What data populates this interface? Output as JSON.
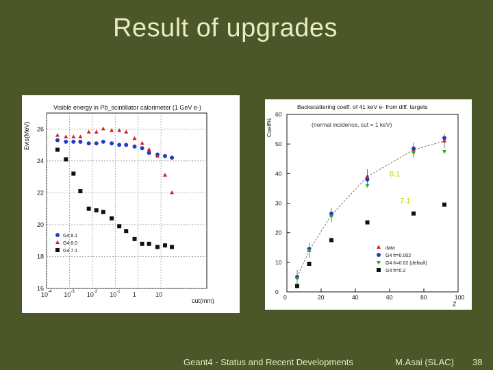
{
  "slide": {
    "title": "Result of upgrades",
    "footer_center": "Geant4 - Status and Recent Developments",
    "footer_author": "M.Asai (SLAC)",
    "page_number": "38"
  },
  "colors": {
    "background": "#4b5629",
    "title_text": "#e8ecc0",
    "blue": "#1f3fbf",
    "red": "#d42020",
    "black": "#111111",
    "green": "#22b022",
    "overlay_text": "#c8d400"
  },
  "chart_data": [
    {
      "type": "scatter",
      "title": "Visible energy in Pb_scintillator calorimeter (1 GeV e-)",
      "ylabel": "Evis(MeV)",
      "xlabel": "cut(mm)",
      "x_scale": "log",
      "xlim": [
        0.0001,
        1000
      ],
      "ylim": [
        16,
        27
      ],
      "grid": "dashed",
      "legend_position": "bottom-left",
      "x_tick_labels": [
        "10",
        "10",
        "10",
        "10",
        "1",
        "10"
      ],
      "x_tick_exponents": [
        "-4",
        "-3",
        "-2",
        "-1",
        "",
        ""
      ],
      "y_tick_labels": [
        "16",
        "18",
        "20",
        "22",
        "24",
        "26"
      ],
      "series": [
        {
          "name": "G4 8.1",
          "marker": "circle",
          "color": "blue",
          "x": [
            0.0003,
            0.0007,
            0.0015,
            0.003,
            0.007,
            0.015,
            0.03,
            0.07,
            0.15,
            0.3,
            0.7,
            1.5,
            3,
            7,
            15,
            30
          ],
          "y": [
            25.3,
            25.2,
            25.2,
            25.2,
            25.1,
            25.1,
            25.2,
            25.1,
            25.0,
            25.0,
            24.9,
            24.8,
            24.5,
            24.4,
            24.3,
            24.2
          ]
        },
        {
          "name": "G4 8.0",
          "marker": "triangle",
          "color": "red",
          "x": [
            0.0003,
            0.0007,
            0.0015,
            0.003,
            0.007,
            0.015,
            0.03,
            0.07,
            0.15,
            0.3,
            0.7,
            1.5,
            3,
            7,
            15,
            30
          ],
          "y": [
            25.6,
            25.5,
            25.5,
            25.5,
            25.8,
            25.8,
            26.0,
            25.9,
            25.9,
            25.8,
            25.4,
            25.1,
            24.7,
            24.3,
            23.1,
            22.0
          ]
        },
        {
          "name": "G4 7.1",
          "marker": "square",
          "color": "black",
          "x": [
            0.0003,
            0.0007,
            0.0015,
            0.003,
            0.007,
            0.015,
            0.03,
            0.07,
            0.15,
            0.3,
            0.7,
            1.5,
            3,
            7,
            15,
            30
          ],
          "y": [
            24.7,
            24.1,
            23.2,
            22.1,
            21.0,
            20.9,
            20.8,
            20.4,
            19.9,
            19.6,
            19.1,
            18.8,
            18.8,
            18.6,
            18.7,
            18.6
          ]
        }
      ],
      "overlay_labels": []
    },
    {
      "type": "scatter",
      "title": "Backscattering coeff. of 41 keV e- from diff. targets",
      "subtitle": "(normal incidence, cut = 1 keV)",
      "ylabel": "Coeff%",
      "xlabel": "Z",
      "xlim": [
        0,
        100
      ],
      "ylim": [
        0,
        60
      ],
      "grid": "none",
      "legend_position": "bottom-right",
      "x_tick_labels": [
        "0",
        "20",
        "40",
        "60",
        "80",
        "100"
      ],
      "y_tick_labels": [
        "0",
        "10",
        "20",
        "30",
        "40",
        "50",
        "60"
      ],
      "series": [
        {
          "name": "data",
          "marker": "triangle",
          "color": "red",
          "x": [
            6,
            13,
            26,
            47,
            74,
            92
          ],
          "y": [
            5,
            14,
            26,
            39,
            48,
            51
          ]
        },
        {
          "name": "G4 fr=0.002",
          "marker": "circle",
          "color": "blue",
          "x": [
            6,
            13,
            26,
            47,
            74,
            92
          ],
          "y": [
            5,
            14.5,
            26.5,
            38,
            48.5,
            52
          ]
        },
        {
          "name": "G4 fr=0.02 (default)",
          "marker": "triangle-down",
          "color": "green",
          "x": [
            6,
            13,
            26,
            47,
            74,
            92
          ],
          "y": [
            4.5,
            14,
            25.5,
            36,
            47,
            47.5
          ]
        },
        {
          "name": "G4 fr=0.2",
          "marker": "square",
          "color": "black",
          "x": [
            6,
            13,
            26,
            47,
            74,
            92
          ],
          "y": [
            2,
            9.5,
            17.5,
            23.5,
            26.5,
            29.5
          ]
        }
      ],
      "overlay_labels": [
        {
          "text": "8.1",
          "x": 60,
          "y": 39
        },
        {
          "text": "7.1",
          "x": 66,
          "y": 30
        }
      ]
    }
  ]
}
